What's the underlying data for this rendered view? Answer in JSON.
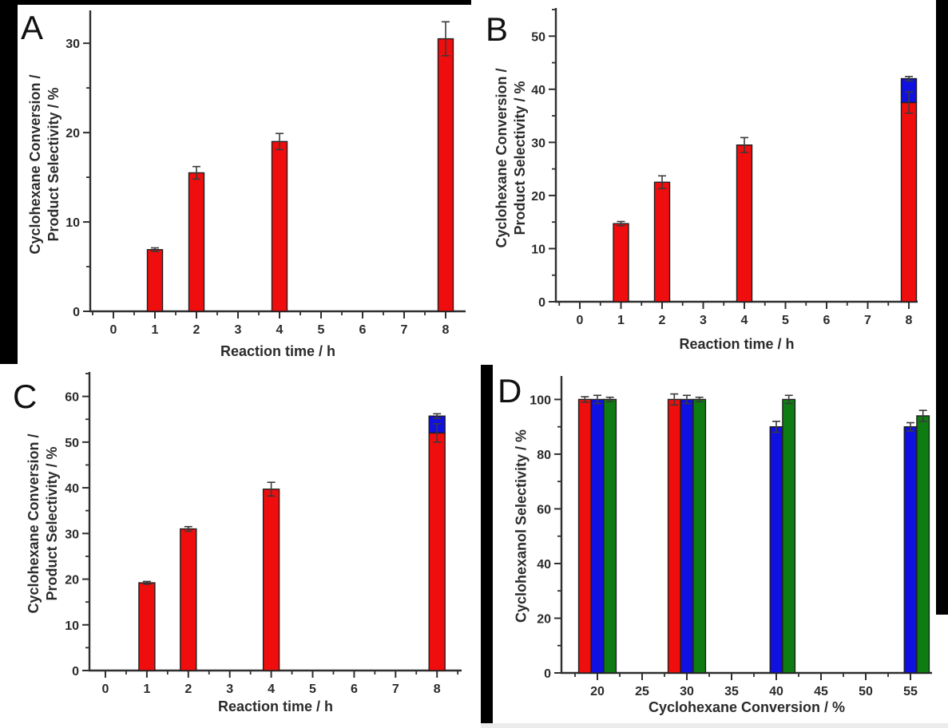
{
  "colors": {
    "red": "#f00d0d",
    "blue": "#1010e0",
    "green": "#0e7c12",
    "axis": "#2f2f2f",
    "bar_outline": "#1f1f1f",
    "error_bar": "#3a3a3a",
    "frame": "#000000",
    "bottom_band": "#ececec",
    "background": "#ffffff"
  },
  "chart_data": [
    {
      "panel": "A",
      "type": "bar",
      "xlabel": "Reaction time / h",
      "ylabel_lines": [
        "Cyclohexane Conversion /",
        "Product Selectivity / %"
      ],
      "x": [
        1,
        2,
        4,
        8
      ],
      "xticks": [
        0,
        1,
        2,
        3,
        4,
        5,
        6,
        7,
        8
      ],
      "yticks": [
        0,
        10,
        20,
        30
      ],
      "ylim": [
        0,
        33.5
      ],
      "grid": false,
      "legend": false,
      "series": [
        {
          "name": "cyclohexane-conversion",
          "color": "red",
          "values": [
            6.9,
            15.5,
            19.0,
            30.5
          ],
          "errors": [
            0.2,
            0.7,
            0.9,
            1.9
          ]
        }
      ]
    },
    {
      "panel": "B",
      "type": "bar",
      "xlabel": "Reaction time / h",
      "ylabel_lines": [
        "Cyclohexane Conversion /",
        "Product Selectivity / %"
      ],
      "x": [
        1,
        2,
        4,
        8
      ],
      "xticks": [
        0,
        1,
        2,
        3,
        4,
        5,
        6,
        7,
        8
      ],
      "yticks": [
        0,
        10,
        20,
        30,
        40,
        50
      ],
      "ylim": [
        0,
        55
      ],
      "grid": false,
      "legend": false,
      "series": [
        {
          "name": "cyclohexane-conversion",
          "color": "red",
          "values": [
            14.7,
            22.5,
            29.5,
            37.5
          ],
          "errors": [
            0.4,
            1.2,
            1.4,
            2.0
          ]
        },
        {
          "name": "stacked-top-segment",
          "color": "blue",
          "stacked": true,
          "values": [
            0,
            0,
            0,
            4.5
          ],
          "errors": [
            0,
            0,
            0,
            0.4
          ]
        }
      ]
    },
    {
      "panel": "C",
      "type": "bar",
      "xlabel": "Reaction time / h",
      "ylabel_lines": [
        "Cyclohexane Conversion /",
        "Product Selectivity / %"
      ],
      "x": [
        1,
        2,
        4,
        8
      ],
      "xticks": [
        0,
        1,
        2,
        3,
        4,
        5,
        6,
        7,
        8
      ],
      "yticks": [
        0,
        10,
        20,
        30,
        40,
        50,
        60
      ],
      "ylim": [
        0,
        65
      ],
      "grid": false,
      "legend": false,
      "series": [
        {
          "name": "cyclohexane-conversion",
          "color": "red",
          "values": [
            19.2,
            31.0,
            39.7,
            52.0
          ],
          "errors": [
            0.3,
            0.5,
            1.5,
            2.0
          ]
        },
        {
          "name": "stacked-top-segment",
          "color": "blue",
          "stacked": true,
          "values": [
            0,
            0,
            0,
            3.7
          ],
          "errors": [
            0,
            0,
            0,
            0.5
          ]
        }
      ]
    },
    {
      "panel": "D",
      "type": "bar",
      "xlabel": "Cyclohexane Conversion / %",
      "ylabel_lines": [
        "Cyclohexanol Selectivity / %"
      ],
      "categories": [
        20,
        30,
        40,
        55
      ],
      "xticks": [
        20,
        25,
        30,
        35,
        40,
        45,
        50,
        55
      ],
      "yticks": [
        0,
        20,
        40,
        60,
        80,
        100
      ],
      "ylim": [
        0,
        108
      ],
      "grid": false,
      "legend": false,
      "series": [
        {
          "name": "series-red",
          "color": "red",
          "values": [
            100,
            100,
            null,
            null
          ],
          "errors": [
            1.0,
            2.0,
            null,
            null
          ]
        },
        {
          "name": "series-blue",
          "color": "blue",
          "values": [
            100,
            100,
            90,
            90
          ],
          "errors": [
            1.5,
            1.5,
            2.0,
            1.5
          ]
        },
        {
          "name": "series-green",
          "color": "green",
          "values": [
            100,
            100,
            100,
            94
          ],
          "errors": [
            0.8,
            0.8,
            1.5,
            2.0
          ]
        }
      ]
    }
  ]
}
